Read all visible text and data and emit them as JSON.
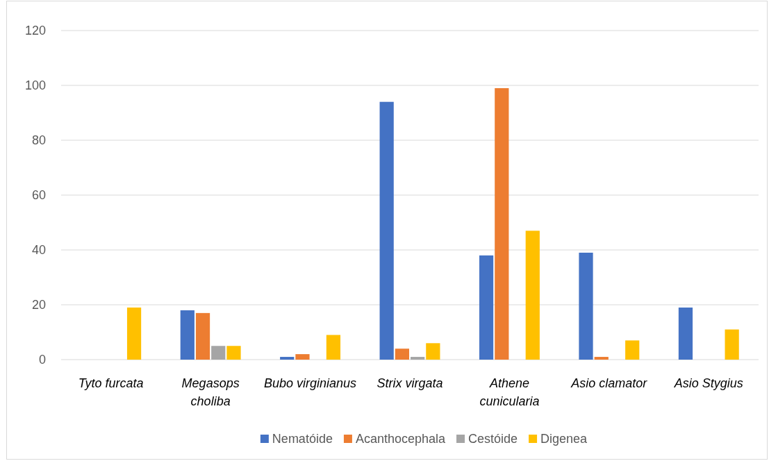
{
  "chart_data": {
    "type": "bar",
    "categories": [
      "Tyto furcata",
      "Megasops choliba",
      "Bubo virginianus",
      "Strix virgata",
      "Athene cunicularia",
      "Asio clamator",
      "Asio Stygius"
    ],
    "series": [
      {
        "name": "Nematóide",
        "color": "#4472c4",
        "values": [
          0,
          18,
          1,
          94,
          38,
          39,
          19
        ]
      },
      {
        "name": "Acanthocephala",
        "color": "#ed7d31",
        "values": [
          0,
          17,
          2,
          4,
          99,
          1,
          0
        ]
      },
      {
        "name": "Cestóide",
        "color": "#a5a5a5",
        "values": [
          0,
          5,
          0,
          1,
          0,
          0,
          0
        ]
      },
      {
        "name": "Digenea",
        "color": "#ffc000",
        "values": [
          19,
          5,
          9,
          6,
          47,
          7,
          11
        ]
      }
    ],
    "ylim": [
      0,
      120
    ],
    "yticks": [
      0,
      20,
      40,
      60,
      80,
      100,
      120
    ],
    "grid": "y",
    "legend": "bottom"
  }
}
